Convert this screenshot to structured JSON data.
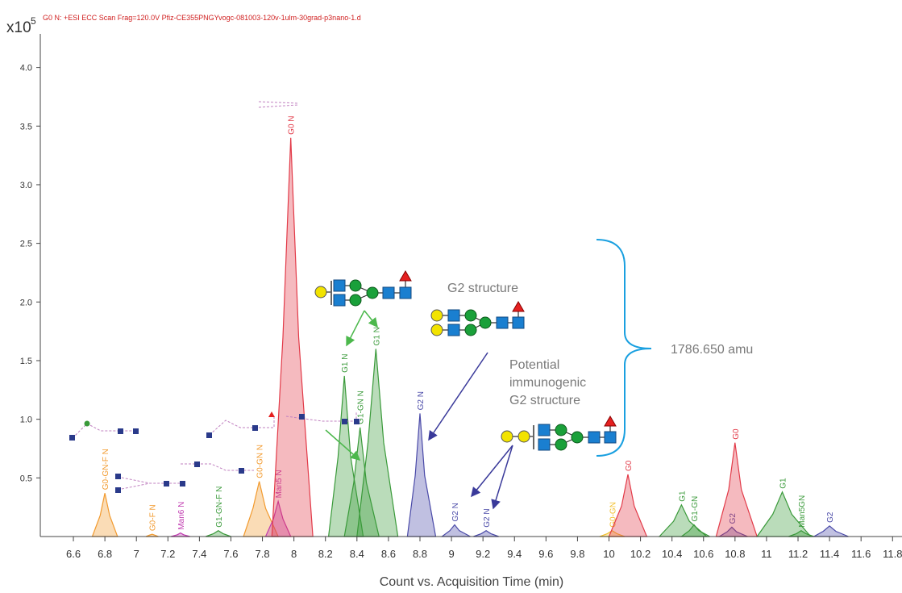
{
  "chart_data": {
    "type": "area",
    "header": "G0 N: +ESI ECC Scan Frag=120.0V Pfiz-CE355PNGYvogc-081003-120v-1ulm-30grad-p3nano-1.d",
    "y_multiplier": {
      "base": "x10",
      "exponent": "5"
    },
    "x_label": "Count vs. Acquisition Time (min)",
    "xlim": [
      6.39,
      11.86
    ],
    "ylim": [
      0,
      4.3
    ],
    "xticks": [
      6.6,
      6.8,
      7,
      7.2,
      7.4,
      7.6,
      7.8,
      8,
      8.2,
      8.4,
      8.6,
      8.8,
      9,
      9.2,
      9.4,
      9.6,
      9.8,
      10,
      10.2,
      10.4,
      10.6,
      10.8,
      11,
      11.2,
      11.4,
      11.6,
      11.8
    ],
    "yticks": [
      0.5,
      {
        "value": 1,
        "label": "1.0"
      },
      1.5,
      {
        "value": 2,
        "label": "2.0"
      },
      2.5,
      {
        "value": 3,
        "label": "3.0"
      },
      3.5,
      {
        "value": 4,
        "label": "4.0"
      }
    ],
    "annotations": {
      "g2": "G2 structure",
      "immunogenic": [
        "Potential",
        "immunogenic",
        "G2 structure"
      ],
      "mass": "1786.650 amu"
    },
    "series": [
      {
        "name": "G0-GN-F N",
        "color": "#f29a2e",
        "x": [
          6.72,
          6.77,
          6.8,
          6.83,
          6.88
        ],
        "values": [
          0,
          0.18,
          0.37,
          0.18,
          0
        ]
      },
      {
        "name": "G0-F N",
        "color": "#f29a2e",
        "x": [
          7.06,
          7.08,
          7.1,
          7.12,
          7.14
        ],
        "values": [
          0,
          0.01,
          0.02,
          0.01,
          0
        ]
      },
      {
        "name": "Man6 N",
        "color": "#c03ab0",
        "x": [
          7.22,
          7.26,
          7.28,
          7.3,
          7.34
        ],
        "values": [
          0,
          0.015,
          0.03,
          0.015,
          0
        ]
      },
      {
        "name": "G1-GN-F N",
        "color": "#3a9a3a",
        "x": [
          7.44,
          7.49,
          7.52,
          7.55,
          7.6
        ],
        "values": [
          0,
          0.025,
          0.05,
          0.025,
          0
        ]
      },
      {
        "name": "G0-GN N",
        "color": "#f29a2e",
        "x": [
          7.68,
          7.74,
          7.78,
          7.82,
          7.9
        ],
        "values": [
          0,
          0.24,
          0.47,
          0.24,
          0
        ]
      },
      {
        "name": "Man5 N",
        "color": "#c03ab0",
        "x": [
          7.82,
          7.87,
          7.9,
          7.93,
          7.98
        ],
        "values": [
          0,
          0.15,
          0.3,
          0.15,
          0
        ]
      },
      {
        "name": "G0 N",
        "color": "#e23a48",
        "x": [
          7.86,
          7.93,
          7.98,
          8.03,
          8.12
        ],
        "values": [
          0,
          1.7,
          3.4,
          1.7,
          0
        ]
      },
      {
        "name": "G1 N",
        "color": "#3a9a3a",
        "x": [
          8.22,
          8.28,
          8.32,
          8.36,
          8.44
        ],
        "values": [
          0,
          0.68,
          1.37,
          0.68,
          0
        ]
      },
      {
        "name": "G1-GN N",
        "color": "#3a9a3a",
        "x": [
          8.32,
          8.38,
          8.42,
          8.46,
          8.54
        ],
        "values": [
          0,
          0.46,
          0.93,
          0.46,
          0
        ]
      },
      {
        "name": "G1 N",
        "color": "#3a9a3a",
        "x": [
          8.4,
          8.47,
          8.52,
          8.57,
          8.66
        ],
        "values": [
          0,
          0.8,
          1.6,
          0.8,
          0
        ]
      },
      {
        "name": "G2 N",
        "color": "#4a4aa8",
        "x": [
          8.72,
          8.77,
          8.8,
          8.83,
          8.9
        ],
        "values": [
          0,
          0.52,
          1.05,
          0.52,
          0
        ]
      },
      {
        "name": "G2 N",
        "color": "#4a4aa8",
        "x": [
          8.94,
          8.99,
          9.02,
          9.05,
          9.12
        ],
        "values": [
          0,
          0.05,
          0.1,
          0.05,
          0
        ]
      },
      {
        "name": "G2 N",
        "color": "#4a4aa8",
        "x": [
          9.14,
          9.19,
          9.22,
          9.25,
          9.3
        ],
        "values": [
          0,
          0.025,
          0.05,
          0.025,
          0
        ]
      },
      {
        "name": "G0-GN",
        "color": "#f2c02e",
        "x": [
          9.94,
          9.99,
          10.02,
          10.05,
          10.1
        ],
        "values": [
          0,
          0.025,
          0.05,
          0.025,
          0
        ]
      },
      {
        "name": "G0",
        "color": "#e23a48",
        "x": [
          10.0,
          10.08,
          10.12,
          10.16,
          10.24
        ],
        "values": [
          0,
          0.26,
          0.53,
          0.26,
          0
        ]
      },
      {
        "name": "G1",
        "color": "#3a9a3a",
        "x": [
          10.32,
          10.41,
          10.46,
          10.51,
          10.62
        ],
        "values": [
          0,
          0.13,
          0.27,
          0.13,
          0
        ]
      },
      {
        "name": "G1-GN",
        "color": "#3a9a3a",
        "x": [
          10.46,
          10.51,
          10.54,
          10.57,
          10.64
        ],
        "values": [
          0,
          0.05,
          0.1,
          0.05,
          0
        ]
      },
      {
        "name": "G2",
        "color": "#4a4aa8",
        "x": [
          10.7,
          10.75,
          10.78,
          10.81,
          10.88
        ],
        "values": [
          0,
          0.04,
          0.08,
          0.04,
          0
        ]
      },
      {
        "name": "G0",
        "color": "#e23a48",
        "x": [
          10.68,
          10.76,
          10.8,
          10.84,
          10.94
        ],
        "values": [
          0,
          0.4,
          0.8,
          0.4,
          0
        ]
      },
      {
        "name": "G1",
        "color": "#3a9a3a",
        "x": [
          10.94,
          11.04,
          11.1,
          11.16,
          11.28
        ],
        "values": [
          0,
          0.19,
          0.38,
          0.19,
          0
        ]
      },
      {
        "name": "Man5GN",
        "color": "#3a9a3a",
        "x": [
          11.14,
          11.19,
          11.22,
          11.25,
          11.3
        ],
        "values": [
          0,
          0.025,
          0.05,
          0.025,
          0
        ]
      },
      {
        "name": "G2",
        "color": "#4a4aa8",
        "x": [
          11.3,
          11.36,
          11.4,
          11.44,
          11.52
        ],
        "values": [
          0,
          0.045,
          0.09,
          0.045,
          0
        ]
      }
    ]
  }
}
